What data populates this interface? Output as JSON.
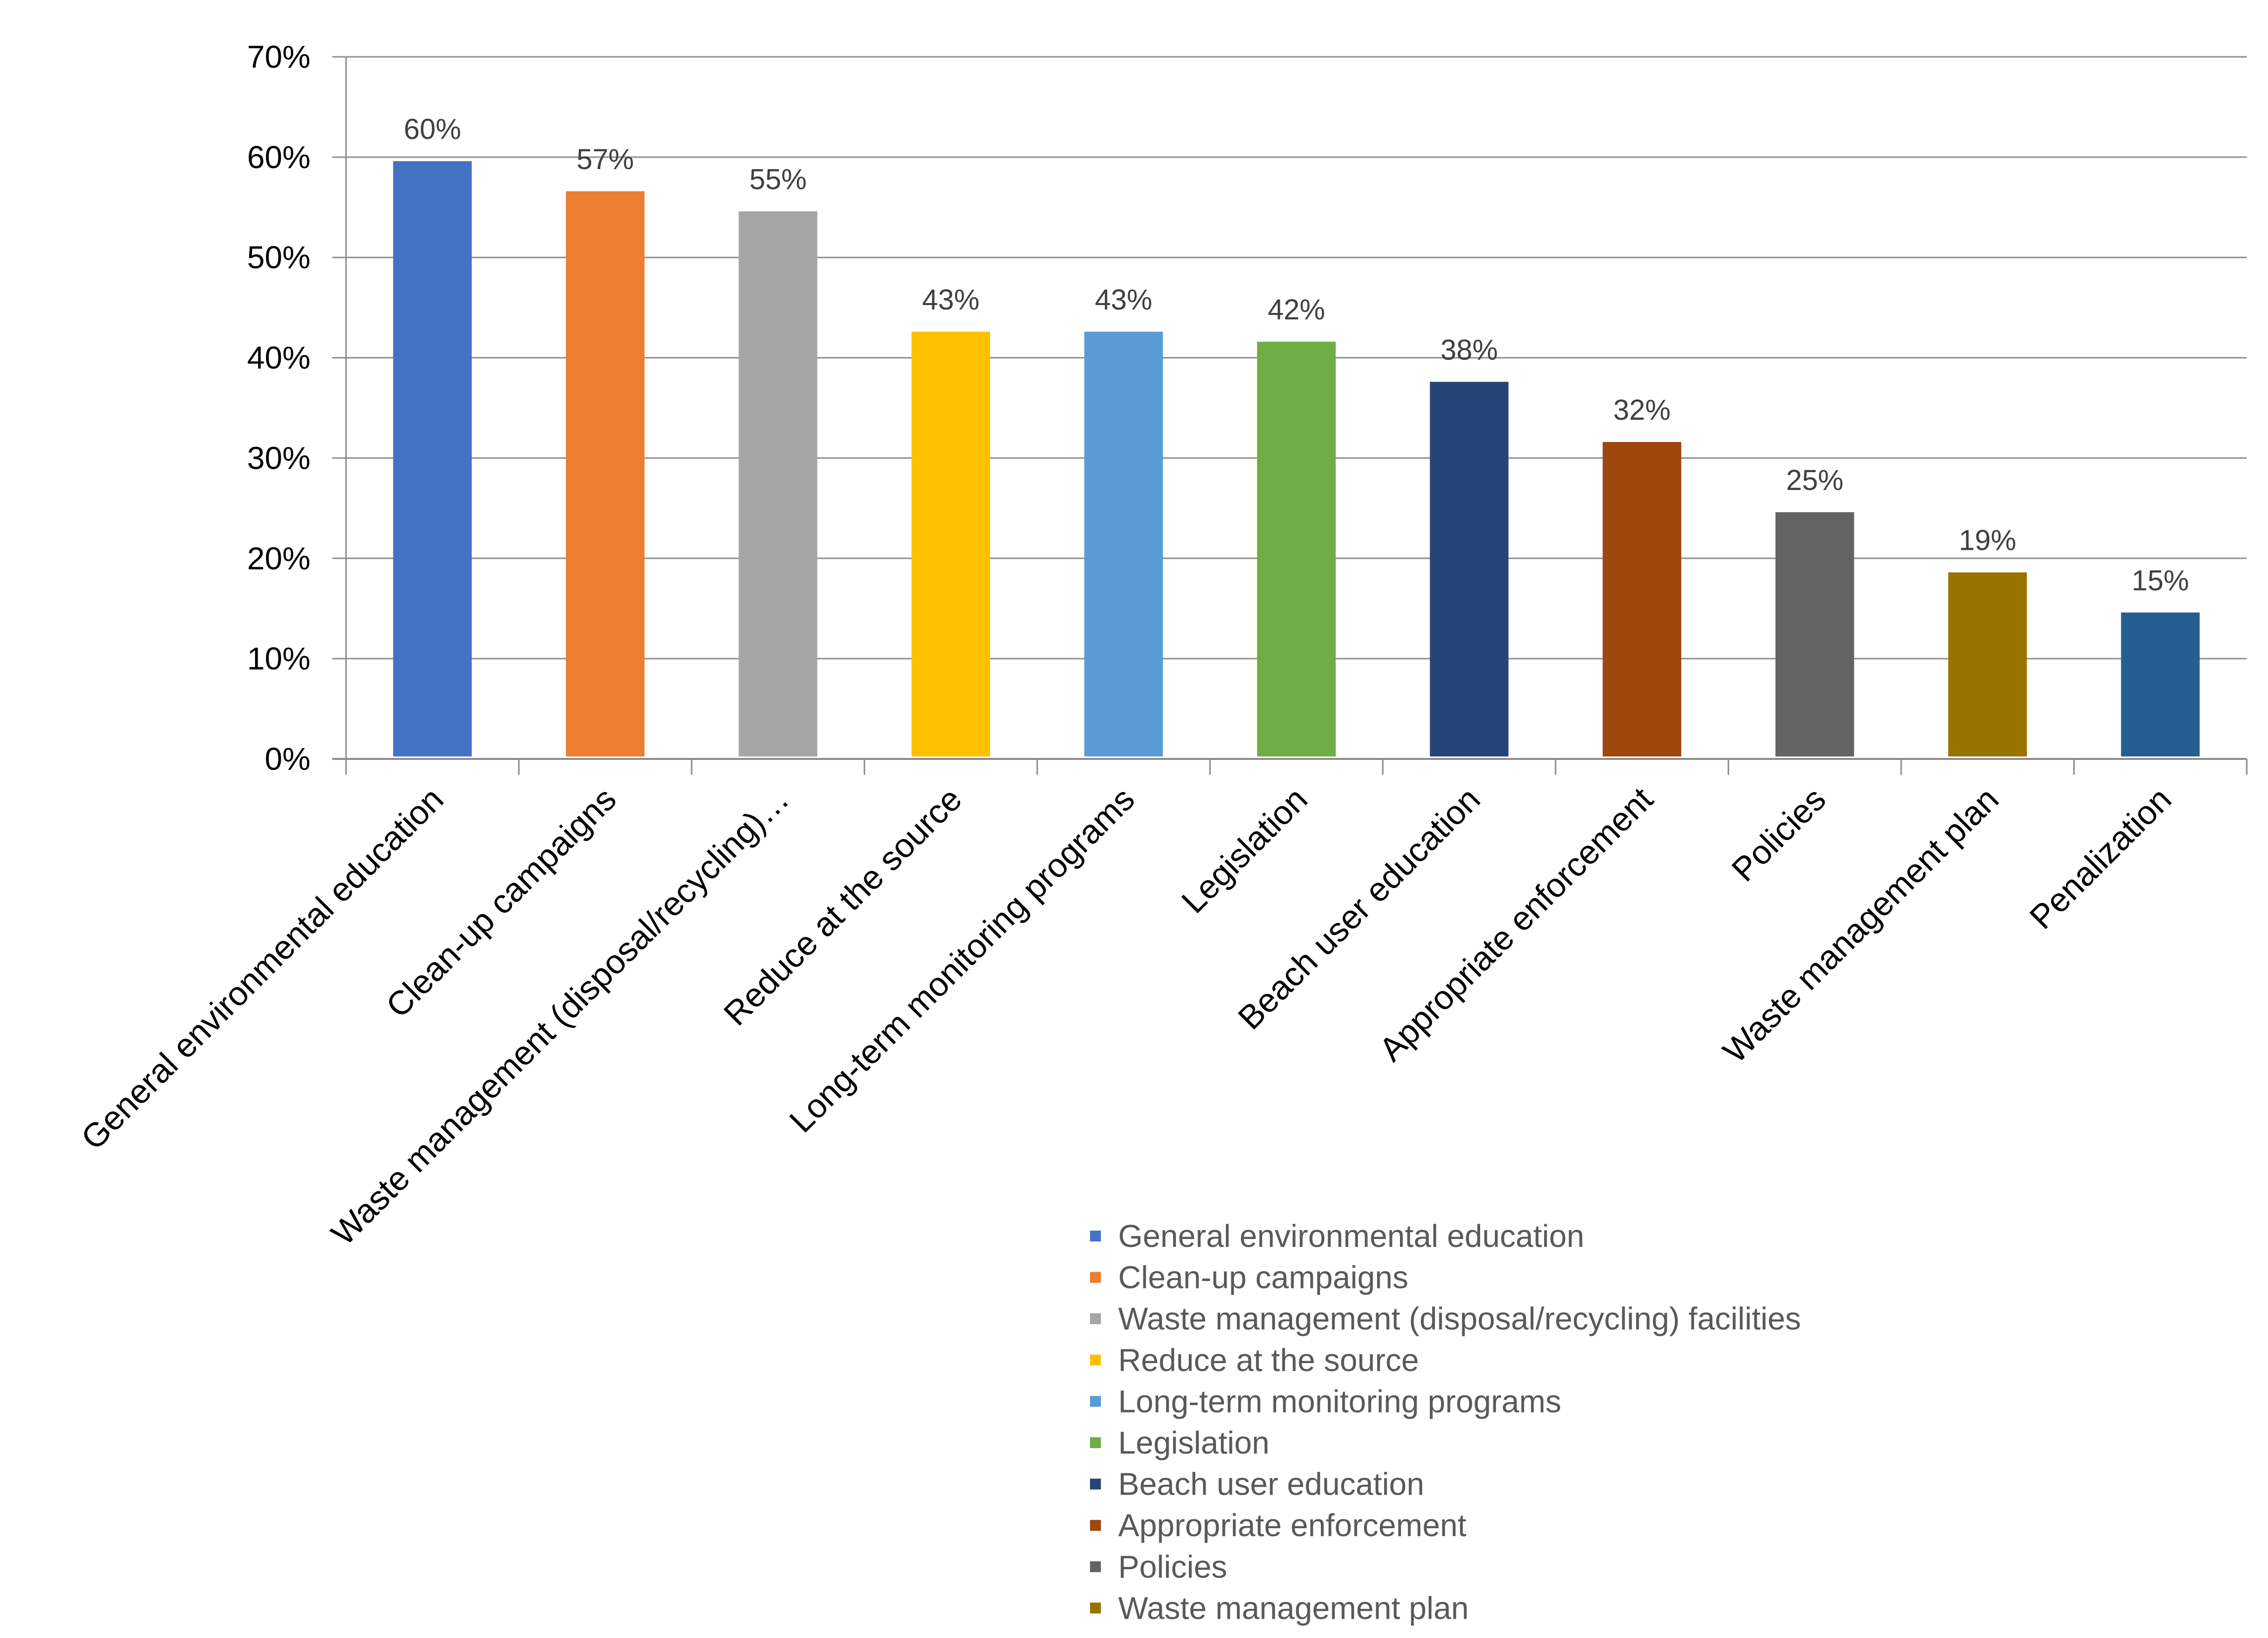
{
  "chart_data": {
    "type": "bar",
    "title": "",
    "xlabel": "",
    "ylabel": "",
    "ylim": [
      0,
      70
    ],
    "ytick_labels": [
      "0%",
      "10%",
      "20%",
      "30%",
      "40%",
      "50%",
      "60%",
      "70%"
    ],
    "grid": true,
    "categories": [
      "General environmental education",
      "Clean-up campaigns",
      "Waste management (disposal/recycling)…",
      "Reduce at the source",
      "Long-term monitoring programs",
      "Legislation",
      "Beach user education",
      "Appropriate enforcement",
      "Policies",
      "Waste management plan",
      "Penalization"
    ],
    "values": [
      60,
      57,
      55,
      43,
      43,
      42,
      38,
      32,
      25,
      19,
      15
    ],
    "bar_heights_estimated": [
      59.6,
      56.6,
      54.6,
      42.6,
      42.6,
      41.6,
      37.6,
      31.6,
      24.6,
      18.6,
      14.6
    ],
    "data_labels": [
      "60%",
      "57%",
      "55%",
      "43%",
      "43%",
      "42%",
      "38%",
      "32%",
      "25%",
      "19%",
      "15%"
    ],
    "colors": [
      "#4472C4",
      "#ED7D31",
      "#A5A5A5",
      "#FFC000",
      "#5B9BD5",
      "#70AD47",
      "#264478",
      "#9E480E",
      "#636363",
      "#997300",
      "#255E91"
    ],
    "legend_position": "bottom-right",
    "legend": [
      "General environmental education",
      "Clean-up campaigns",
      "Waste management (disposal/recycling) facilities",
      "Reduce at the source",
      "Long-term monitoring programs",
      "Legislation",
      "Beach user education",
      "Appropriate enforcement",
      "Policies",
      "Waste management plan"
    ]
  }
}
